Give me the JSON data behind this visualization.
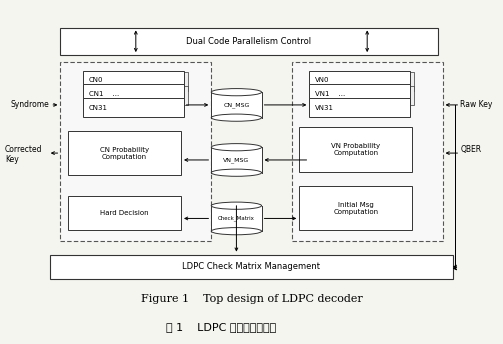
{
  "fig_width": 5.03,
  "fig_height": 3.44,
  "dpi": 100,
  "bg_color": "#f5f5f0",
  "dual_control_label": "Dual Code Parallelism Control",
  "ldpc_mgmt_label": "LDPC Check Matrix Management",
  "cn_prob_label": "CN Probability\nComputation",
  "hard_dec_label": "Hard Decision",
  "vn_prob_label": "VN Probability\nComputation",
  "init_msg_label": "Initial Msg\nComputation",
  "cn_msg_label": "CN_MSG",
  "vn_msg_label": "VN_MSG",
  "check_matrix_label": "Check_Matrix",
  "syndrome_label": "Syndrome",
  "corrected_key_label": "Corrected\nKey",
  "raw_key_label": "Raw Key",
  "qber_label": "QBER",
  "title_en": "Figure 1    Top design of LDPC decoder",
  "title_cn": "图 1    LDPC 译码器总体设计",
  "cn_nodes": [
    "CN0",
    "CN1    ...",
    "CN31"
  ],
  "vn_nodes": [
    "VN0",
    "VN1    ...",
    "VN31"
  ]
}
